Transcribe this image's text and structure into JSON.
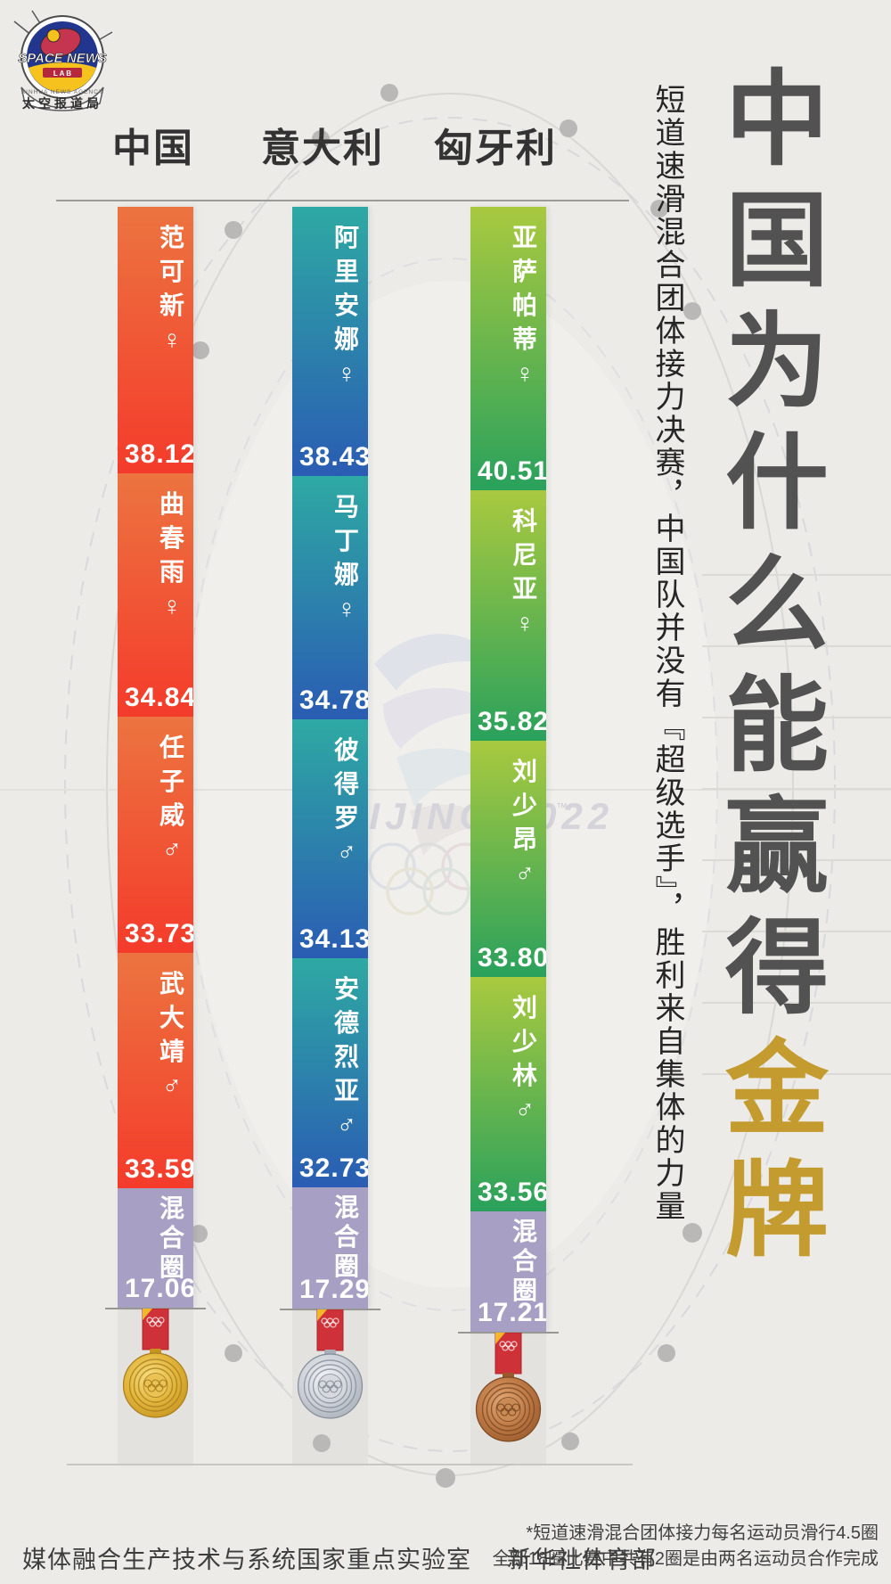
{
  "logo": {
    "brand_top": "SPACE NEWS",
    "brand_sub": "L A B",
    "agency_arc": "XINHUA NEWS AGENCY",
    "banner": "太空报道局"
  },
  "columns": [
    "中国",
    "意大利",
    "匈牙利"
  ],
  "headline": {
    "gray": "中国为什么能赢得",
    "gold": "金牌",
    "subtitle": "短道速滑混合团体接力决赛，中国队并没有『超级选手』，胜利来自集体的力量"
  },
  "watermark": {
    "text": "BEIJING 2022",
    "tm": "™"
  },
  "footer": {
    "credit_left": "媒体融合生产技术与系统国家重点实验室",
    "credit_right": "新华社体育部",
    "note_line1": "*短道速滑混合团体接力每名运动员滑行4.5圈",
    "note_line2": "全部18圈比赛中共有2圈是由两名运动员合作完成"
  },
  "colors": {
    "china_top": "#ec7440",
    "china_bottom": "#f43b2b",
    "italy_top": "#2ea9a3",
    "italy_bottom": "#2a5cb3",
    "hungary_top": "#a9c93f",
    "hungary_bottom": "#29a15c",
    "mixed_lap": "#a79fc4",
    "gold_title": "#c39b2e"
  },
  "chart_data": {
    "type": "bar",
    "orientation": "vertical-stacked",
    "unit": "seconds",
    "title_gray": "中国为什么能赢得",
    "title_gold": "金牌",
    "categories": [
      "中国",
      "意大利",
      "匈牙利"
    ],
    "medals": [
      "gold",
      "silver",
      "bronze"
    ],
    "series": [
      {
        "team": "中国",
        "medal": "gold",
        "legs": [
          {
            "athlete": "范可新",
            "gender": "female",
            "symbol": "♀",
            "time_label": "38.12s",
            "seconds": 38.12
          },
          {
            "athlete": "曲春雨",
            "gender": "female",
            "symbol": "♀",
            "time_label": "34.84s",
            "seconds": 34.84
          },
          {
            "athlete": "任子威",
            "gender": "male",
            "symbol": "♂",
            "time_label": "33.73s",
            "seconds": 33.73
          },
          {
            "athlete": "武大靖",
            "gender": "male",
            "symbol": "♂",
            "time_label": "33.59s",
            "seconds": 33.59
          },
          {
            "athlete": "混合圈",
            "gender": "mixed",
            "symbol": "",
            "time_label": "17.06s",
            "seconds": 17.06
          }
        ]
      },
      {
        "team": "意大利",
        "medal": "silver",
        "legs": [
          {
            "athlete": "阿里安娜",
            "gender": "female",
            "symbol": "♀",
            "time_label": "38.43s",
            "seconds": 38.43
          },
          {
            "athlete": "马丁娜",
            "gender": "female",
            "symbol": "♀",
            "time_label": "34.78s",
            "seconds": 34.78
          },
          {
            "athlete": "彼得罗",
            "gender": "male",
            "symbol": "♂",
            "time_label": "34.13s",
            "seconds": 34.13
          },
          {
            "athlete": "安德烈亚",
            "gender": "male",
            "symbol": "♂",
            "time_label": "32.73s",
            "seconds": 32.73
          },
          {
            "athlete": "混合圈",
            "gender": "mixed",
            "symbol": "",
            "time_label": "17.29s",
            "seconds": 17.29
          }
        ]
      },
      {
        "team": "匈牙利",
        "medal": "bronze",
        "legs": [
          {
            "athlete": "亚萨帕蒂",
            "gender": "female",
            "symbol": "♀",
            "time_label": "40.51s",
            "seconds": 40.51
          },
          {
            "athlete": "科尼亚",
            "gender": "female",
            "symbol": "♀",
            "time_label": "35.82s",
            "seconds": 35.82
          },
          {
            "athlete": "刘少昂",
            "gender": "male",
            "symbol": "♂",
            "time_label": "33.80s",
            "seconds": 33.8
          },
          {
            "athlete": "刘少林",
            "gender": "male",
            "symbol": "♂",
            "time_label": "33.56s",
            "seconds": 33.56
          },
          {
            "athlete": "混合圈",
            "gender": "mixed",
            "symbol": "",
            "time_label": "17.21s",
            "seconds": 17.21
          }
        ]
      }
    ]
  }
}
